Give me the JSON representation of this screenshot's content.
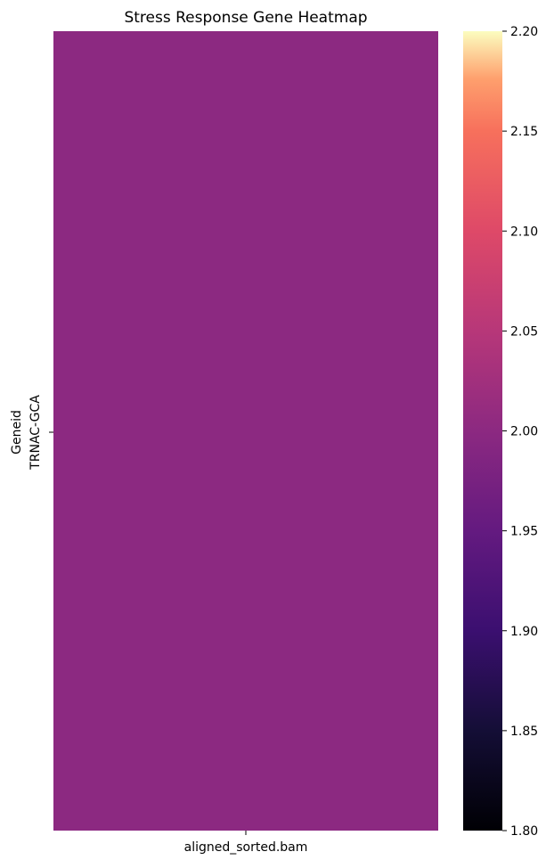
{
  "chart_data": {
    "type": "heatmap",
    "title": "Stress Response Gene Heatmap",
    "ylabel": "Geneid",
    "xlabel": "",
    "rows": [
      "TRNAC-GCA"
    ],
    "columns": [
      "aligned_sorted.bam"
    ],
    "values": [
      [
        2.0
      ]
    ],
    "colorbar": {
      "colormap": "magma",
      "range": [
        1.8,
        2.2
      ],
      "ticks": [
        "1.80",
        "1.85",
        "1.90",
        "1.95",
        "2.00",
        "2.05",
        "2.10",
        "2.15",
        "2.20"
      ]
    },
    "grid": false,
    "legend_position": "right"
  }
}
